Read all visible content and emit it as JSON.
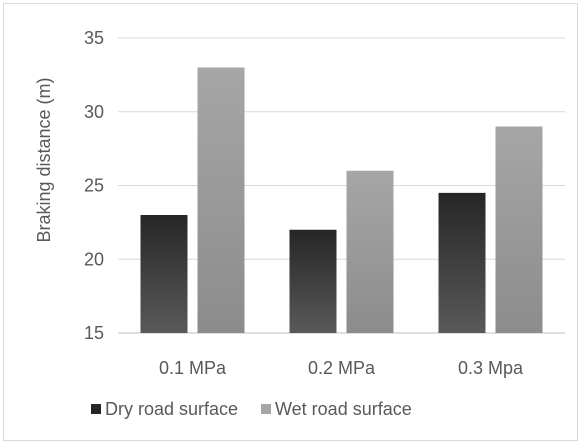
{
  "chart_data": {
    "type": "bar",
    "title": "",
    "xlabel": "",
    "ylabel": "Braking distance (m)",
    "categories": [
      "0.1 MPa",
      "0.2 MPa",
      "0.3 Mpa"
    ],
    "series": [
      {
        "name": "Dry road surface",
        "values": [
          23,
          22,
          24.5
        ],
        "color_top": "#262626",
        "color_bottom": "#595959"
      },
      {
        "name": "Wet road surface",
        "values": [
          33,
          26,
          29
        ],
        "color_top": "#a6a6a6",
        "color_bottom": "#8c8c8c"
      }
    ],
    "ylim": [
      15,
      35
    ],
    "yticks": [
      15,
      20,
      25,
      30,
      35
    ],
    "grid": true,
    "legend_position": "bottom"
  }
}
